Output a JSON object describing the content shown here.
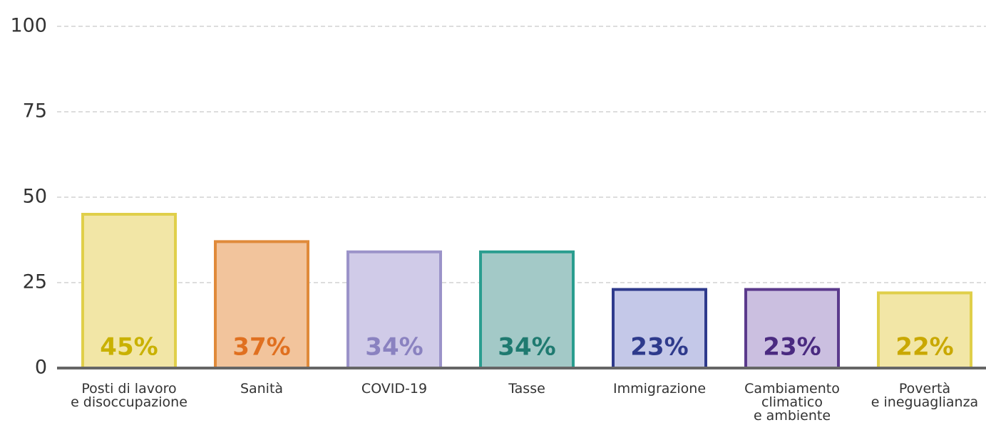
{
  "chart_data": {
    "type": "bar",
    "categories": [
      "Posti di lavoro\ne disoccupazione",
      "Sanità",
      "COVID-19",
      "Tasse",
      "Immigrazione",
      "Cambiamento\nclimatico\ne ambiente",
      "Povertà\ne ineguaglianza"
    ],
    "values": [
      45,
      37,
      34,
      34,
      23,
      23,
      22
    ],
    "value_labels": [
      "45%",
      "37%",
      "34%",
      "34%",
      "23%",
      "23%",
      "22%"
    ],
    "colors": [
      "#e0cf4a",
      "#e08a3a",
      "#9b93c9",
      "#2a9d8f",
      "#2e3a8c",
      "#5b3a8c",
      "#e0cf4a"
    ],
    "fill_colors": [
      "#f2e6a6",
      "#f2c49c",
      "#d0cbe8",
      "#a3c9c7",
      "#c4c8e8",
      "#cbbfe0",
      "#f2e6a6"
    ],
    "label_colors": [
      "#c9b100",
      "#e07020",
      "#8a82c0",
      "#1f7a70",
      "#2e3a8c",
      "#4a2a80",
      "#c9a800"
    ],
    "ylim": [
      0,
      100
    ],
    "yticks": [
      0,
      25,
      50,
      75,
      100
    ],
    "grid": true
  }
}
